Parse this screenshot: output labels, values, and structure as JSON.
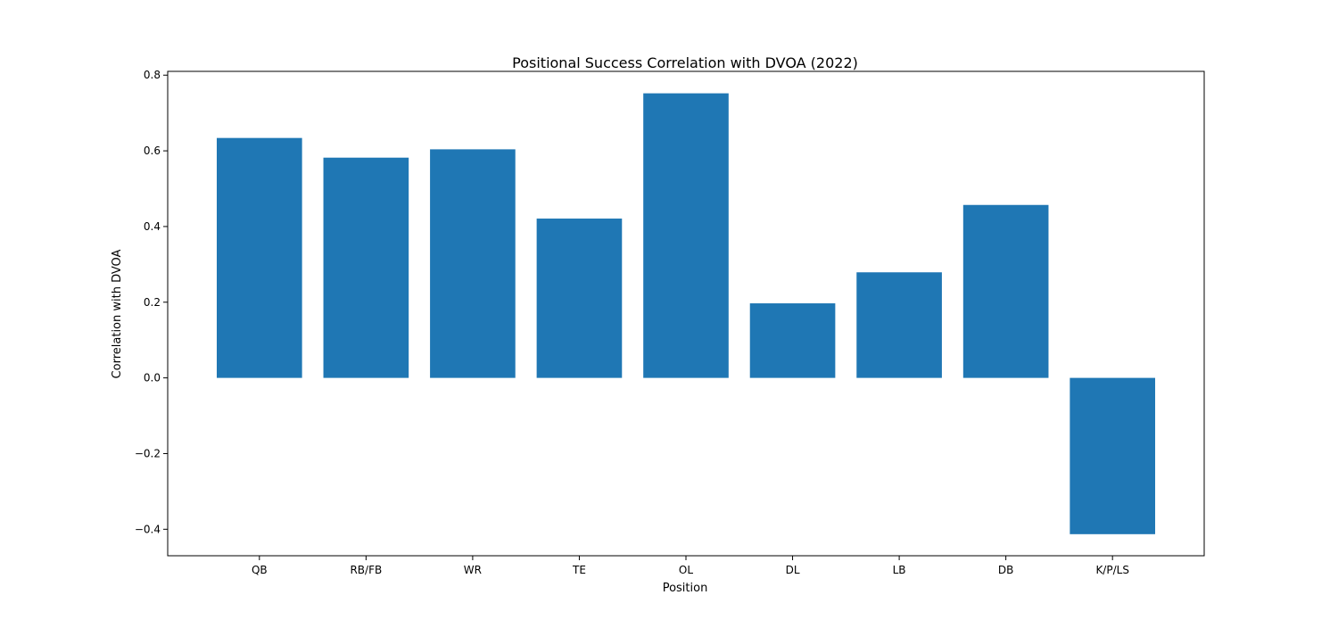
{
  "chart_data": {
    "type": "bar",
    "title": "Positional Success Correlation with DVOA (2022)",
    "xlabel": "Position",
    "ylabel": "Correlation with DVOA",
    "categories": [
      "QB",
      "RB/FB",
      "WR",
      "TE",
      "OL",
      "DL",
      "LB",
      "DB",
      "K/P/LS"
    ],
    "values": [
      0.634,
      0.582,
      0.604,
      0.421,
      0.752,
      0.197,
      0.279,
      0.457,
      -0.413
    ],
    "ylim": [
      -0.47,
      0.81
    ],
    "yticks": [
      -0.4,
      -0.2,
      0.0,
      0.2,
      0.4,
      0.6,
      0.8
    ],
    "ytick_labels": [
      "−0.4",
      "−0.2",
      "0.0",
      "0.2",
      "0.4",
      "0.6",
      "0.8"
    ],
    "bar_color": "#1f77b4",
    "grid": false,
    "legend": "none"
  }
}
